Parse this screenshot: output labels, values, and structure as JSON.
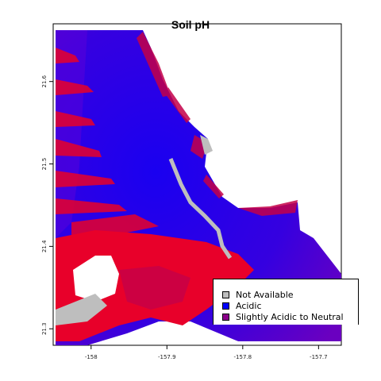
{
  "title": "Soil pH",
  "x_ticks": [
    {
      "value": -158.0,
      "label": "-158"
    },
    {
      "value": -157.9,
      "label": "-157.9"
    },
    {
      "value": -157.8,
      "label": "-157.8"
    },
    {
      "value": -157.7,
      "label": "-157.7"
    }
  ],
  "y_ticks": [
    {
      "value": 21.3,
      "label": "21.3"
    },
    {
      "value": 21.4,
      "label": "21.4"
    },
    {
      "value": 21.5,
      "label": "21.5"
    },
    {
      "value": 21.6,
      "label": "21.6"
    }
  ],
  "extent": {
    "lon": [
      -158.05,
      -157.67
    ],
    "lat": [
      21.28,
      21.67
    ]
  },
  "legend": [
    {
      "label": "Not Available",
      "color": "#bebebe"
    },
    {
      "label": "Acidic",
      "color": "#0000ff"
    },
    {
      "label": "Slightly Acidic to Neutral",
      "color": "#8b008b"
    }
  ],
  "colors": {
    "acidic": "#0000ff",
    "mixed": "#5a00d8",
    "red": "#e8002a",
    "crimson": "#c40048",
    "not_available": "#bebebe"
  }
}
